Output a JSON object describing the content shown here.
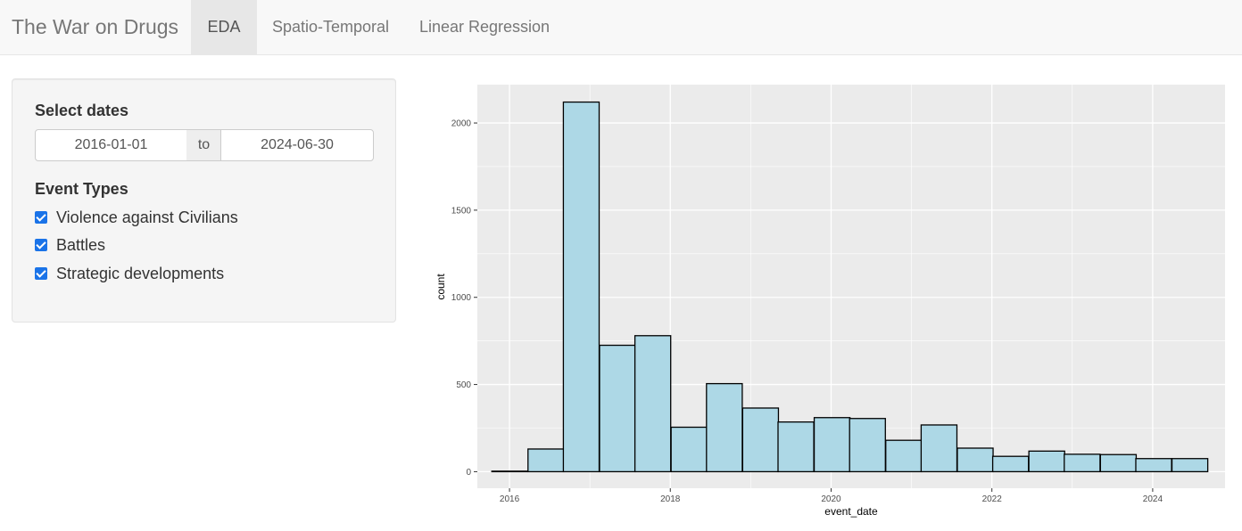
{
  "navbar": {
    "brand": "The War on Drugs",
    "tabs": [
      {
        "label": "EDA",
        "active": true
      },
      {
        "label": "Spatio-Temporal",
        "active": false
      },
      {
        "label": "Linear Regression",
        "active": false
      }
    ]
  },
  "sidebar": {
    "dates_label": "Select dates",
    "start_date": "2016-01-01",
    "separator": "to",
    "end_date": "2024-06-30",
    "event_types_label": "Event Types",
    "event_types": [
      {
        "label": "Violence against Civilians",
        "checked": true
      },
      {
        "label": "Battles",
        "checked": true
      },
      {
        "label": "Strategic developments",
        "checked": true
      }
    ]
  },
  "colors": {
    "checkbox": "#1a73e8",
    "bar_fill": "#add8e6",
    "bar_stroke": "#000000",
    "panel_background": "#ebebeb",
    "grid": "#ffffff"
  },
  "chart_data": {
    "type": "bar",
    "subtype": "histogram",
    "xlabel": "event_date",
    "ylabel": "count",
    "xlim": [
      2015.6,
      2024.9
    ],
    "ylim": [
      -95,
      2220
    ],
    "x_ticks": [
      2016,
      2018,
      2020,
      2022,
      2024
    ],
    "y_ticks": [
      0,
      500,
      1000,
      1500,
      2000
    ],
    "grid": true,
    "bin_width": 0.445,
    "bins": [
      {
        "x0": 2015.78,
        "value": 3
      },
      {
        "x0": 2016.23,
        "value": 130
      },
      {
        "x0": 2016.67,
        "value": 2120
      },
      {
        "x0": 2017.12,
        "value": 725
      },
      {
        "x0": 2017.56,
        "value": 780
      },
      {
        "x0": 2018.01,
        "value": 255
      },
      {
        "x0": 2018.45,
        "value": 505
      },
      {
        "x0": 2018.9,
        "value": 365
      },
      {
        "x0": 2019.34,
        "value": 285
      },
      {
        "x0": 2019.79,
        "value": 310
      },
      {
        "x0": 2020.23,
        "value": 305
      },
      {
        "x0": 2020.68,
        "value": 180
      },
      {
        "x0": 2021.12,
        "value": 268
      },
      {
        "x0": 2021.57,
        "value": 135
      },
      {
        "x0": 2022.01,
        "value": 88
      },
      {
        "x0": 2022.46,
        "value": 118
      },
      {
        "x0": 2022.9,
        "value": 100
      },
      {
        "x0": 2023.35,
        "value": 98
      },
      {
        "x0": 2023.79,
        "value": 75
      },
      {
        "x0": 2024.24,
        "value": 75
      }
    ]
  }
}
